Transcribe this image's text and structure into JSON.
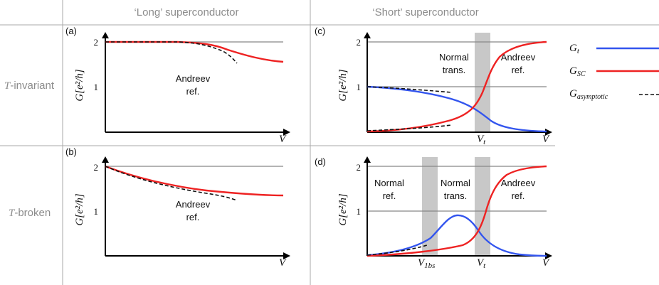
{
  "headers": {
    "col_long": "‘Long’ superconductor",
    "col_short": "‘Short’ superconductor",
    "row_invariant_symbol": "T",
    "row_invariant": "-invariant",
    "row_broken_symbol": "T",
    "row_broken": "-broken"
  },
  "axes": {
    "xlabel": "V",
    "ylabel": "G[e²/h]",
    "tick_2": "2",
    "tick_1": "1"
  },
  "panels": {
    "a": {
      "tag": "(a)",
      "region": [
        "Andreev",
        "ref."
      ]
    },
    "b": {
      "tag": "(b)",
      "region": [
        "Andreev",
        "ref."
      ]
    },
    "c": {
      "tag": "(c)",
      "region1": [
        "Normal",
        "trans."
      ],
      "region2": [
        "Andreev",
        "ref."
      ],
      "vtick": "V",
      "vtick_sub": "t"
    },
    "d": {
      "tag": "(d)",
      "region0": [
        "Normal",
        "ref."
      ],
      "region1": [
        "Normal",
        "trans."
      ],
      "region2": [
        "Andreev",
        "ref."
      ],
      "vtick1": "V",
      "vtick1_sub": "1bs",
      "vtick2": "V",
      "vtick2_sub": "t"
    }
  },
  "legend": [
    {
      "symbol": "G",
      "sub": "t",
      "color": "#3355ee",
      "style": "solid"
    },
    {
      "symbol": "G",
      "sub": "SC",
      "color": "#ee2222",
      "style": "solid"
    },
    {
      "symbol": "G",
      "sub": "asymptotic",
      "color": "#111111",
      "style": "dashed"
    }
  ],
  "colors": {
    "blue": "#3355ee",
    "red": "#ee2222",
    "grid": "#888888",
    "band": "#c8c8c8"
  }
}
